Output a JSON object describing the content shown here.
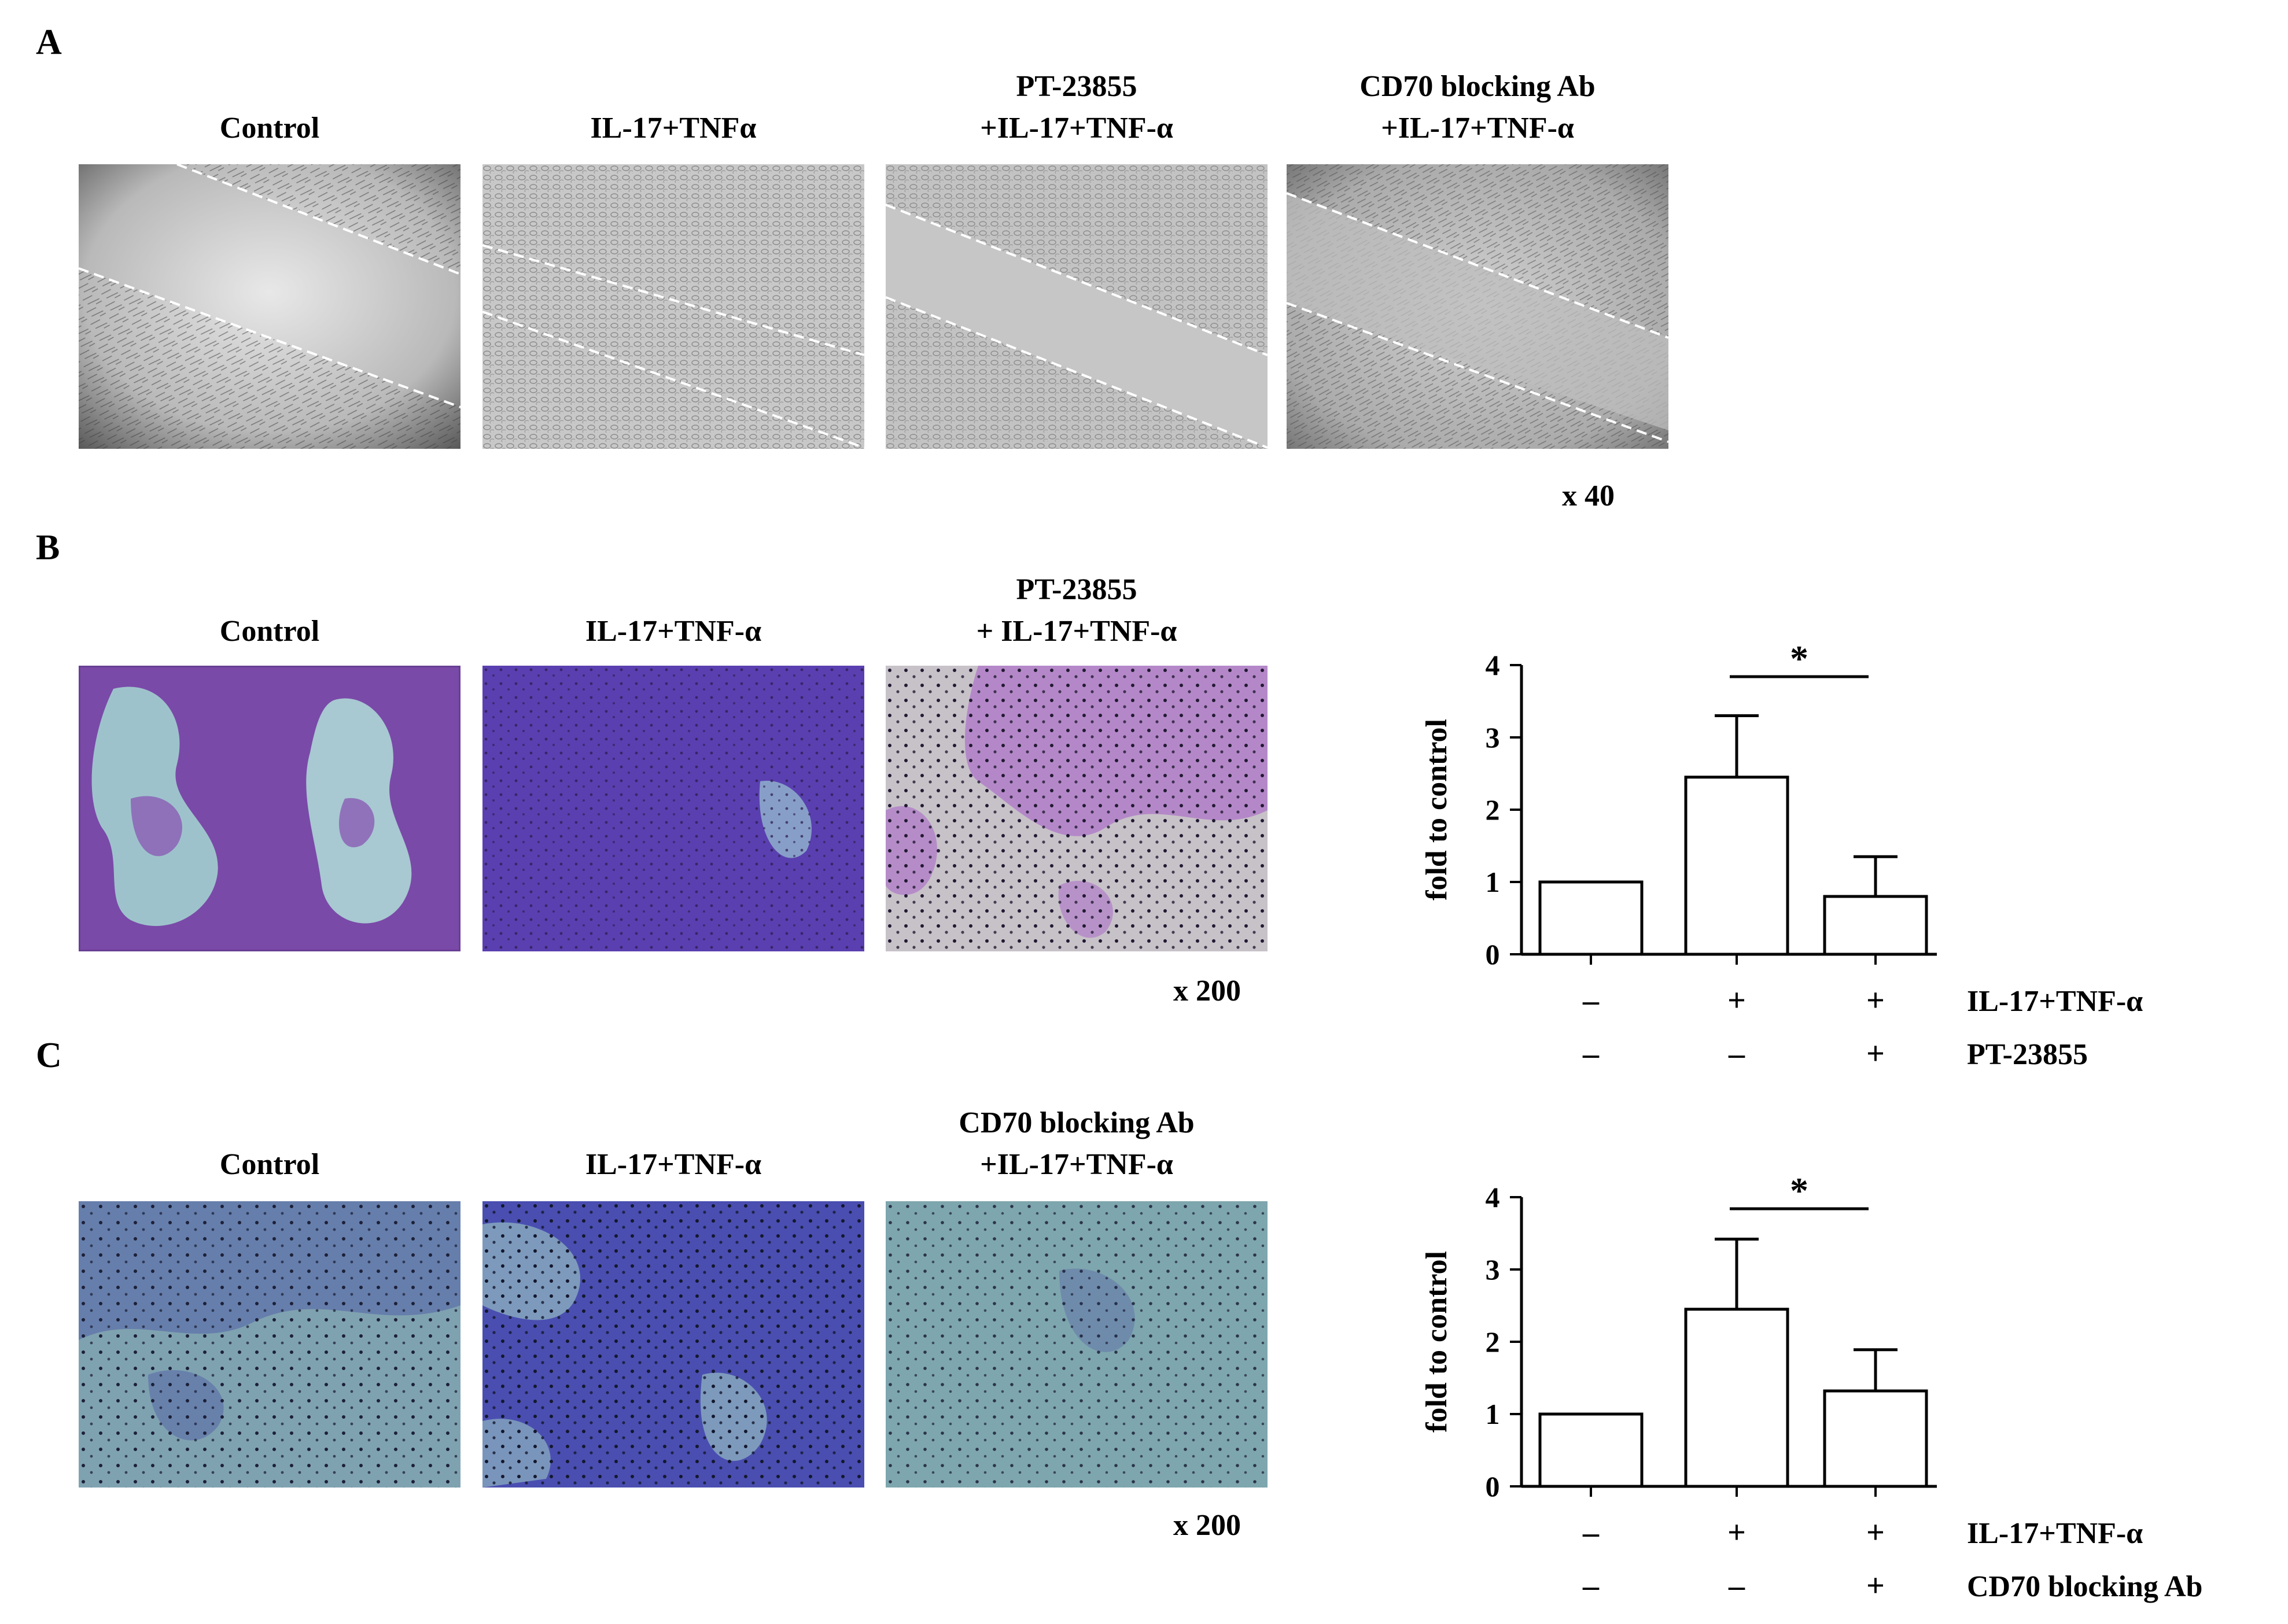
{
  "panels": {
    "a": {
      "letter": "A",
      "columns": [
        {
          "title_lines": [
            "Control"
          ]
        },
        {
          "title_lines": [
            "IL-17+TNFα"
          ]
        },
        {
          "title_lines": [
            "PT-23855",
            "+IL-17+TNF-α"
          ]
        },
        {
          "title_lines": [
            "CD70 blocking Ab",
            "+IL-17+TNF-α"
          ]
        }
      ],
      "magnification": "x 40"
    },
    "b": {
      "letter": "B",
      "columns": [
        {
          "title_lines": [
            "Control"
          ]
        },
        {
          "title_lines": [
            "IL-17+TNF-α"
          ]
        },
        {
          "title_lines": [
            "PT-23855",
            "+ IL-17+TNF-α"
          ]
        }
      ],
      "magnification": "x 200"
    },
    "c": {
      "letter": "C",
      "columns": [
        {
          "title_lines": [
            "Control"
          ]
        },
        {
          "title_lines": [
            "IL-17+TNF-α"
          ]
        },
        {
          "title_lines": [
            "CD70 blocking Ab",
            "+IL-17+TNF-α"
          ]
        }
      ],
      "magnification": "x 200"
    }
  },
  "chart_data": [
    {
      "type": "bar",
      "panel": "B",
      "ylabel": "fold to control",
      "ylim": [
        0,
        4
      ],
      "yticks": [
        0,
        1,
        2,
        3,
        4
      ],
      "values": [
        1.0,
        2.45,
        0.8
      ],
      "errors": [
        0,
        0.85,
        0.55
      ],
      "significance": {
        "from": 1,
        "to": 2,
        "label": "*"
      },
      "treatment_rows": [
        {
          "label": "IL-17+TNF-α",
          "signs": [
            "–",
            "+",
            "+"
          ]
        },
        {
          "label": "PT-23855",
          "signs": [
            "–",
            "–",
            "+"
          ]
        }
      ]
    },
    {
      "type": "bar",
      "panel": "C",
      "ylabel": "fold to control",
      "ylim": [
        0,
        4
      ],
      "yticks": [
        0,
        1,
        2,
        3,
        4
      ],
      "values": [
        1.0,
        2.45,
        1.32
      ],
      "errors": [
        0,
        0.97,
        0.57
      ],
      "significance": {
        "from": 1,
        "to": 2,
        "label": "*"
      },
      "treatment_rows": [
        {
          "label": "IL-17+TNF-α",
          "signs": [
            "–",
            "+",
            "+"
          ]
        },
        {
          "label": "CD70 blocking Ab",
          "signs": [
            "–",
            "–",
            "+"
          ]
        }
      ]
    }
  ]
}
